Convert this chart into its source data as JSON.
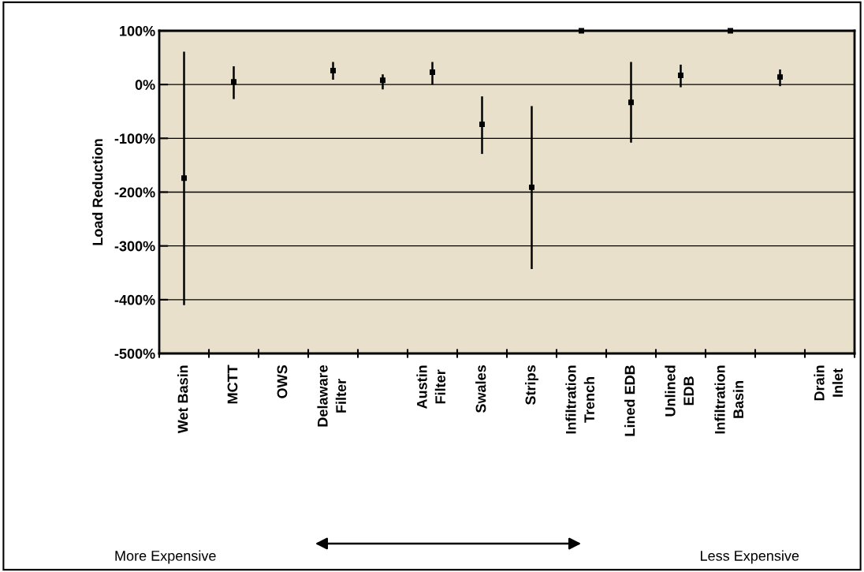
{
  "chart_data": {
    "type": "scatter",
    "ylabel": "Load Reduction",
    "categories": [
      "Wet Basin",
      "MCTT",
      "OWS",
      "Delaware\nFilter",
      null,
      "Austin\nFilter",
      "Swales",
      "Strips",
      "Infiltration\nTrench",
      "Lined EDB",
      "Unlined\nEDB",
      "Infiltration\nBasin",
      null,
      "Drain\nInlet"
    ],
    "series": [
      {
        "color": "#000000",
        "values": [
          -174,
          5,
          null,
          26,
          8,
          23,
          -74,
          -191,
          100,
          -33,
          17,
          100,
          14,
          null
        ],
        "errors": [
          [
            -410,
            61
          ],
          [
            -27,
            34
          ],
          null,
          [
            9,
            42
          ],
          [
            -9,
            19
          ],
          [
            0,
            42
          ],
          [
            -129,
            -22
          ],
          [
            -343,
            -40
          ],
          null,
          [
            -108,
            42
          ],
          [
            -5,
            37
          ],
          null,
          [
            -3,
            28
          ],
          null
        ]
      }
    ],
    "ylim": [
      -500,
      100
    ],
    "yticks": [
      {
        "value": 100,
        "label": "100%"
      },
      {
        "value": 0,
        "label": "0%"
      },
      {
        "value": -100,
        "label": "-100%"
      },
      {
        "value": -200,
        "label": "-200%"
      },
      {
        "value": -300,
        "label": "-300%"
      },
      {
        "value": -400,
        "label": "-400%"
      },
      {
        "value": -500,
        "label": "-500%"
      }
    ],
    "grid": "y",
    "marker": "square",
    "annotations": [
      "More Expensive",
      "Less Expensive"
    ]
  }
}
